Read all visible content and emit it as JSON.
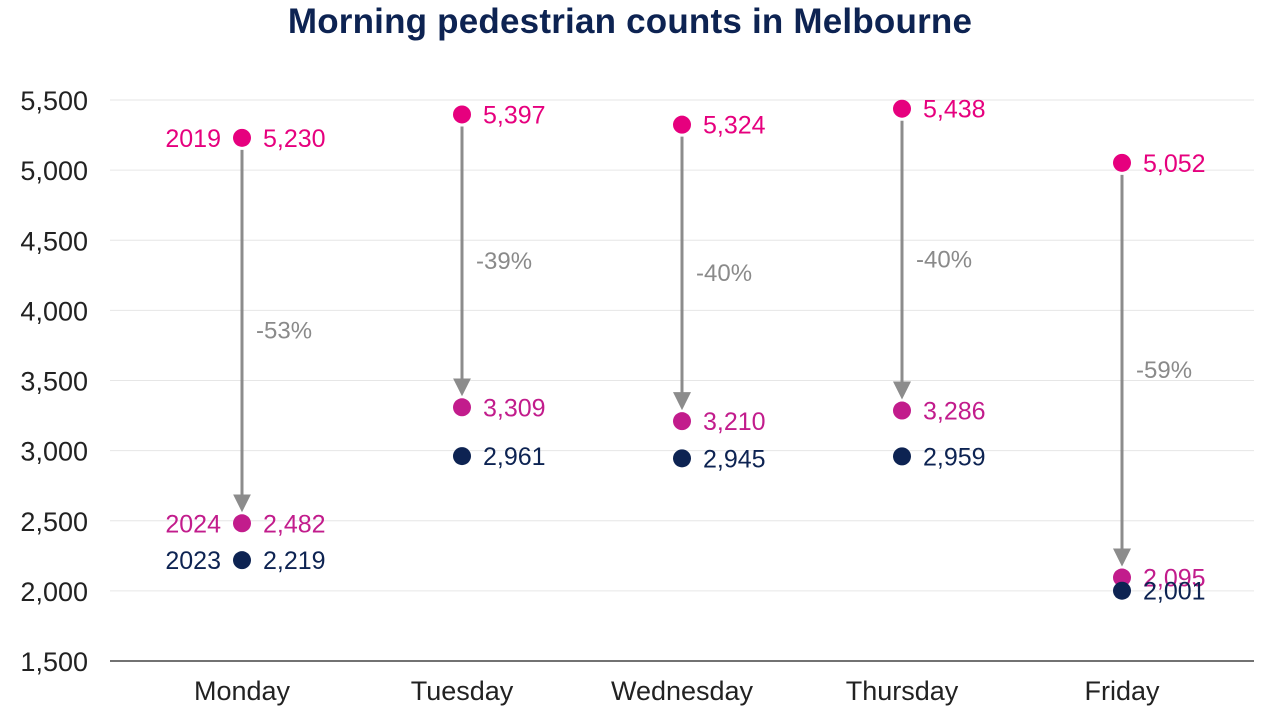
{
  "chart_data": {
    "type": "dot_arrow",
    "title": "Morning pedestrian counts in Melbourne",
    "xlabel": "",
    "ylabel": "",
    "ylim": [
      1500,
      5500
    ],
    "yticks": [
      1500,
      2000,
      2500,
      3000,
      3500,
      4000,
      4500,
      5000,
      5500
    ],
    "ytick_labels": [
      "1,500",
      "2,000",
      "2,500",
      "3,000",
      "3,500",
      "4,000",
      "4,500",
      "5,000",
      "5,500"
    ],
    "grid": true,
    "categories": [
      "Monday",
      "Tuesday",
      "Wednesday",
      "Thursday",
      "Friday"
    ],
    "series": [
      {
        "name": "2019",
        "color": "#e6007e",
        "values": [
          5230,
          5397,
          5324,
          5438,
          5052
        ],
        "value_labels": [
          "5,230",
          "5,397",
          "5,324",
          "5,438",
          "5,052"
        ]
      },
      {
        "name": "2024",
        "color": "#c21c8c",
        "values": [
          2482,
          3309,
          3210,
          3286,
          2095
        ],
        "value_labels": [
          "2,482",
          "3,309",
          "3,210",
          "3,286",
          "2,095"
        ]
      },
      {
        "name": "2023",
        "color": "#0d2352",
        "values": [
          2219,
          2961,
          2945,
          2959,
          2001
        ],
        "value_labels": [
          "2,219",
          "2,961",
          "2,945",
          "2,959",
          "2,001"
        ]
      }
    ],
    "change_labels": [
      "-53%",
      "-39%",
      "-40%",
      "-40%",
      "-59%"
    ],
    "arrow_color": "#8c8c8c",
    "grid_color": "#e6e6e6",
    "axis_color": "#444444"
  }
}
